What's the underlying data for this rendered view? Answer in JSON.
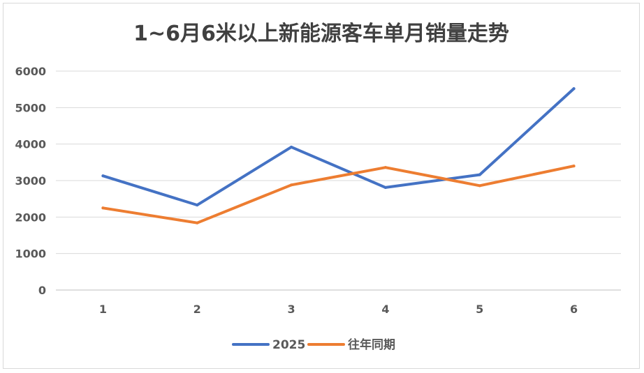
{
  "chart_data": {
    "type": "line",
    "title": "1~6月6米以上新能源客车单月销量走势",
    "xlabel": "",
    "ylabel": "",
    "categories": [
      "1",
      "2",
      "3",
      "4",
      "5",
      "6"
    ],
    "ylim": [
      0,
      6000
    ],
    "yticks": [
      "0",
      "1000",
      "2000",
      "3000",
      "4000",
      "5000",
      "6000"
    ],
    "grid": true,
    "legend_position": "bottom",
    "series": [
      {
        "name": "2025",
        "color": "#4472c4",
        "values": [
          3130,
          2330,
          3920,
          2810,
          3160,
          5520
        ]
      },
      {
        "name": "往年同期",
        "color": "#ed7d31",
        "values": [
          2250,
          1840,
          2880,
          3360,
          2860,
          3400
        ]
      }
    ]
  }
}
